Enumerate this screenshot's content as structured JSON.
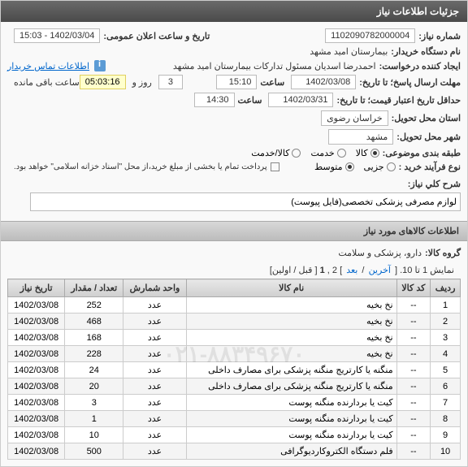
{
  "panel": {
    "title": "جزئیات اطلاعات نیاز"
  },
  "form": {
    "need_no_label": "شماره نیاز:",
    "need_no": "1102090782000004",
    "pub_datetime_label": "تاریخ و ساعت اعلان عمومی:",
    "pub_datetime": "1402/03/04 - 15:03",
    "buyer_label": "نام دستگاه خریدار:",
    "buyer": "بیمارستان امید مشهد",
    "requester_label": "ایجاد کننده درخواست:",
    "requester": "احمدرضا اسدیان مسئول تدارکات بیمارستان امید مشهد",
    "contact_link": "اطلاعات تماس خریدار",
    "deadline_label": "مهلت ارسال پاسخ؛ تا تاریخ:",
    "deadline_date": "1402/03/08",
    "time_word": "ساعت",
    "deadline_time": "15:10",
    "days": "3",
    "days_and": "روز و",
    "countdown": "05:03:16",
    "remaining": "ساعت باقی مانده",
    "validity_label": "حداقل تاریخ اعتبار قیمت؛ تا تاریخ:",
    "validity_date": "1402/03/31",
    "validity_time": "14:30",
    "province_label": "استان محل تحویل:",
    "province": "خراسان رضوی",
    "city_label": "شهر محل تحویل:",
    "city": "مشهد",
    "class_label": "طبقه بندی موضوعی:",
    "class_goods": "کالا",
    "class_service": "خدمت",
    "class_both": "کالا/خدمت",
    "buy_type_label": "نوع فرآیند خرید :",
    "buy_type_partial": "جزیی",
    "buy_type_mid": "متوسط",
    "payment_note": "پرداخت تمام یا بخشی از مبلغ خرید،از محل \"اسناد خزانه اسلامی\" خواهد بود.",
    "desc_label": "شرح کلي نیاز:",
    "desc": "لوازم مصرفی پزشکی تخصصی(فایل پیوست)"
  },
  "items_section": {
    "title": "اطلاعات کالاهای مورد نیاز",
    "group_label": "گروه کالا:",
    "group": "دارو، پزشکی و سلامت"
  },
  "pager": {
    "text_pre": "نمایش 1 تا 10. [ ",
    "last": "آخرین",
    "slash": " / ",
    "next": "بعد",
    "text_mid": " ] 2 ,",
    "current": "1",
    "text_post": " [ قبل / اولین]"
  },
  "table": {
    "headers": {
      "row": "ردیف",
      "code": "کد کالا",
      "name": "نام کالا",
      "unit": "واحد شمارش",
      "qty": "تعداد / مقدار",
      "date": "تاریخ نیاز"
    },
    "rows": [
      {
        "n": "1",
        "code": "--",
        "name": "نخ بخیه",
        "unit": "عدد",
        "qty": "252",
        "date": "1402/03/08"
      },
      {
        "n": "2",
        "code": "--",
        "name": "نخ بخیه",
        "unit": "عدد",
        "qty": "468",
        "date": "1402/03/08"
      },
      {
        "n": "3",
        "code": "--",
        "name": "نخ بخیه",
        "unit": "عدد",
        "qty": "168",
        "date": "1402/03/08"
      },
      {
        "n": "4",
        "code": "--",
        "name": "نخ بخیه",
        "unit": "عدد",
        "qty": "228",
        "date": "1402/03/08"
      },
      {
        "n": "5",
        "code": "--",
        "name": "منگنه یا کارتریج منگنه پزشکی برای مصارف داخلی",
        "unit": "عدد",
        "qty": "24",
        "date": "1402/03/08"
      },
      {
        "n": "6",
        "code": "--",
        "name": "منگنه یا کارتریج منگنه پزشکی برای مصارف داخلی",
        "unit": "عدد",
        "qty": "20",
        "date": "1402/03/08"
      },
      {
        "n": "7",
        "code": "--",
        "name": "کیت یا بردارنده منگنه پوست",
        "unit": "عدد",
        "qty": "3",
        "date": "1402/03/08"
      },
      {
        "n": "8",
        "code": "--",
        "name": "کیت یا بردارنده منگنه پوست",
        "unit": "عدد",
        "qty": "1",
        "date": "1402/03/08"
      },
      {
        "n": "9",
        "code": "--",
        "name": "کیت یا بردارنده منگنه پوست",
        "unit": "عدد",
        "qty": "10",
        "date": "1402/03/08"
      },
      {
        "n": "10",
        "code": "--",
        "name": "فلم دستگاه الکتروکاردیوگرافی",
        "unit": "عدد",
        "qty": "500",
        "date": "1402/03/08"
      }
    ]
  },
  "watermark": "۰۲۱-۸۸۳۴۹۶۷۰"
}
